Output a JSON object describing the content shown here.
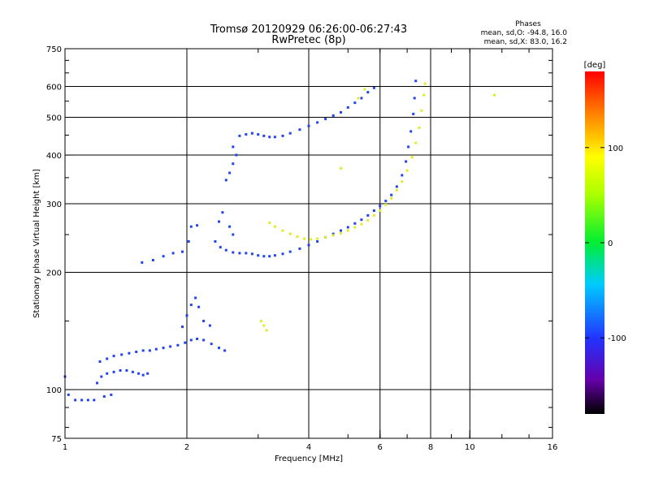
{
  "chart_data": {
    "type": "scatter",
    "title": "Tromsø 20120929 06:26:00-06:27:43",
    "subtitle": "RwPretec (8p)",
    "xlabel": "Frequency [MHz]",
    "ylabel": "Stationary phase Virtual Height [km]",
    "x_scale": "log",
    "y_scale": "log",
    "xlim": [
      1,
      16
    ],
    "ylim": [
      75,
      750
    ],
    "x_ticks": [
      {
        "value": 1,
        "label": "1"
      },
      {
        "value": 2,
        "label": "2"
      },
      {
        "value": 4,
        "label": "4"
      },
      {
        "value": 6,
        "label": "6"
      },
      {
        "value": 8,
        "label": "8"
      },
      {
        "value": 10,
        "label": "10"
      },
      {
        "value": 16,
        "label": "16"
      }
    ],
    "y_ticks": [
      {
        "value": 75,
        "label": "75"
      },
      {
        "value": 100,
        "label": "100"
      },
      {
        "value": 200,
        "label": "200"
      },
      {
        "value": 300,
        "label": "300"
      },
      {
        "value": 400,
        "label": "400"
      },
      {
        "value": 500,
        "label": "500"
      },
      {
        "value": 600,
        "label": "600"
      },
      {
        "value": 750,
        "label": "750"
      }
    ],
    "grid": true,
    "legend": {
      "title": "Phases",
      "lines": [
        "mean, sd,O: -94.8, 16.0",
        "mean, sd,X:  83.0, 16.2"
      ]
    },
    "colorbar": {
      "label": "[deg]",
      "range": [
        -180,
        180
      ],
      "ticks": [
        {
          "value": 100,
          "label": "100"
        },
        {
          "value": 0,
          "label": "0"
        },
        {
          "value": -100,
          "label": "-100"
        }
      ]
    },
    "series": [
      {
        "mode": "O",
        "phase_deg": -95,
        "color": "#2244ee",
        "points": [
          [
            1.0,
            108
          ],
          [
            1.02,
            97
          ],
          [
            1.06,
            94
          ],
          [
            1.1,
            94
          ],
          [
            1.14,
            94
          ],
          [
            1.18,
            94
          ],
          [
            1.25,
            96
          ],
          [
            1.3,
            97
          ],
          [
            1.2,
            104
          ],
          [
            1.23,
            108
          ],
          [
            1.27,
            110
          ],
          [
            1.32,
            111
          ],
          [
            1.37,
            112
          ],
          [
            1.42,
            112
          ],
          [
            1.47,
            111
          ],
          [
            1.52,
            110
          ],
          [
            1.56,
            109
          ],
          [
            1.6,
            110
          ],
          [
            1.22,
            118
          ],
          [
            1.27,
            120
          ],
          [
            1.32,
            122
          ],
          [
            1.38,
            123
          ],
          [
            1.44,
            124
          ],
          [
            1.5,
            125
          ],
          [
            1.56,
            126
          ],
          [
            1.62,
            126
          ],
          [
            1.68,
            127
          ],
          [
            1.75,
            128
          ],
          [
            1.82,
            129
          ],
          [
            1.9,
            130
          ],
          [
            1.98,
            132
          ],
          [
            2.05,
            134
          ],
          [
            2.12,
            135
          ],
          [
            2.2,
            134
          ],
          [
            2.3,
            131
          ],
          [
            2.4,
            128
          ],
          [
            2.48,
            126
          ],
          [
            1.95,
            145
          ],
          [
            2.0,
            155
          ],
          [
            2.05,
            165
          ],
          [
            2.1,
            172
          ],
          [
            2.14,
            163
          ],
          [
            2.2,
            150
          ],
          [
            2.28,
            146
          ],
          [
            1.55,
            212
          ],
          [
            1.65,
            215
          ],
          [
            1.75,
            220
          ],
          [
            1.85,
            224
          ],
          [
            1.95,
            226
          ],
          [
            2.02,
            240
          ],
          [
            2.05,
            262
          ],
          [
            2.12,
            264
          ],
          [
            2.35,
            240
          ],
          [
            2.42,
            232
          ],
          [
            2.5,
            228
          ],
          [
            2.6,
            225
          ],
          [
            2.7,
            224
          ],
          [
            2.8,
            224
          ],
          [
            2.9,
            223
          ],
          [
            3.0,
            221
          ],
          [
            3.1,
            220
          ],
          [
            3.2,
            220
          ],
          [
            3.3,
            221
          ],
          [
            3.45,
            223
          ],
          [
            3.6,
            226
          ],
          [
            3.8,
            230
          ],
          [
            4.0,
            235
          ],
          [
            4.2,
            240
          ],
          [
            4.4,
            246
          ],
          [
            4.6,
            251
          ],
          [
            4.8,
            256
          ],
          [
            5.0,
            261
          ],
          [
            5.2,
            267
          ],
          [
            5.4,
            273
          ],
          [
            5.6,
            280
          ],
          [
            5.8,
            288
          ],
          [
            6.0,
            296
          ],
          [
            6.2,
            305
          ],
          [
            6.4,
            316
          ],
          [
            6.6,
            332
          ],
          [
            6.8,
            355
          ],
          [
            6.95,
            385
          ],
          [
            7.05,
            420
          ],
          [
            7.15,
            460
          ],
          [
            7.25,
            510
          ],
          [
            7.3,
            560
          ],
          [
            7.35,
            620
          ],
          [
            2.4,
            270
          ],
          [
            2.45,
            285
          ],
          [
            2.55,
            262
          ],
          [
            2.6,
            250
          ],
          [
            2.5,
            345
          ],
          [
            2.55,
            360
          ],
          [
            2.6,
            380
          ],
          [
            2.65,
            400
          ],
          [
            2.6,
            420
          ],
          [
            2.7,
            448
          ],
          [
            2.8,
            452
          ],
          [
            2.9,
            455
          ],
          [
            3.0,
            452
          ],
          [
            3.1,
            448
          ],
          [
            3.2,
            445
          ],
          [
            3.3,
            445
          ],
          [
            3.45,
            448
          ],
          [
            3.6,
            455
          ],
          [
            3.8,
            465
          ],
          [
            4.0,
            475
          ],
          [
            4.2,
            485
          ],
          [
            4.4,
            495
          ],
          [
            4.6,
            505
          ],
          [
            4.8,
            515
          ],
          [
            5.0,
            530
          ],
          [
            5.2,
            545
          ],
          [
            5.4,
            560
          ],
          [
            5.6,
            580
          ],
          [
            5.8,
            595
          ]
        ]
      },
      {
        "mode": "X",
        "phase_deg": 83,
        "color": "#ddee22",
        "points": [
          [
            3.2,
            268
          ],
          [
            3.3,
            262
          ],
          [
            3.45,
            256
          ],
          [
            3.6,
            251
          ],
          [
            3.75,
            247
          ],
          [
            3.9,
            244
          ],
          [
            4.05,
            243
          ],
          [
            4.2,
            244
          ],
          [
            4.4,
            246
          ],
          [
            4.6,
            249
          ],
          [
            4.8,
            252
          ],
          [
            5.0,
            256
          ],
          [
            5.2,
            261
          ],
          [
            5.4,
            266
          ],
          [
            5.6,
            272
          ],
          [
            5.8,
            280
          ],
          [
            6.0,
            288
          ],
          [
            6.2,
            298
          ],
          [
            6.4,
            310
          ],
          [
            6.6,
            325
          ],
          [
            6.8,
            342
          ],
          [
            7.0,
            365
          ],
          [
            7.2,
            395
          ],
          [
            7.35,
            430
          ],
          [
            7.5,
            470
          ],
          [
            7.6,
            520
          ],
          [
            7.7,
            570
          ],
          [
            7.75,
            610
          ],
          [
            3.05,
            150
          ],
          [
            3.1,
            146
          ],
          [
            3.15,
            142
          ],
          [
            5.3,
            560
          ],
          [
            5.5,
            590
          ],
          [
            4.8,
            370
          ],
          [
            11.5,
            570
          ]
        ]
      }
    ]
  }
}
